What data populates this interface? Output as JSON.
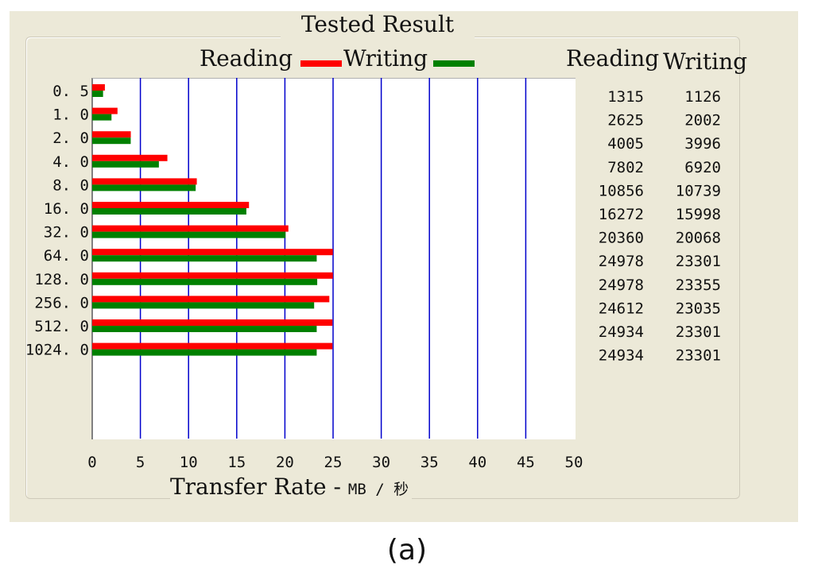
{
  "title": "Tested Result",
  "legend": {
    "reading_label": "Reading",
    "writing_label": "Writing"
  },
  "table_headers": {
    "reading": "Reading",
    "writing": "Writing"
  },
  "x_axis_title": "Transfer Rate - ",
  "x_axis_unit": "MB / 秒",
  "caption": "(a)",
  "colors": {
    "reading": "#ff0000",
    "writing": "#008000",
    "grid": "#0000cc",
    "panel": "#ece9d8"
  },
  "chart_data": {
    "type": "bar",
    "orientation": "horizontal",
    "title": "Tested Result",
    "categories": [
      "0.5",
      "1.0",
      "2.0",
      "4.0",
      "8.0",
      "16.0",
      "32.0",
      "64.0",
      "128.0",
      "256.0",
      "512.0",
      "1024.0"
    ],
    "category_labels": [
      "0. 5",
      "1. 0",
      "2. 0",
      "4. 0",
      "8. 0",
      "16. 0",
      "32. 0",
      "64. 0",
      "128. 0",
      "256. 0",
      "512. 0",
      "1024. 0"
    ],
    "series": [
      {
        "name": "Reading",
        "color": "#ff0000",
        "values": [
          1.315,
          2.625,
          4.005,
          7.802,
          10.856,
          16.272,
          20.36,
          24.978,
          24.978,
          24.612,
          24.934,
          24.934
        ],
        "labels": [
          "1315",
          "2625",
          "4005",
          "7802",
          "10856",
          "16272",
          "20360",
          "24978",
          "24978",
          "24612",
          "24934",
          "24934"
        ]
      },
      {
        "name": "Writing",
        "color": "#008000",
        "values": [
          1.126,
          2.002,
          3.996,
          6.92,
          10.739,
          15.998,
          20.068,
          23.301,
          23.355,
          23.035,
          23.301,
          23.301
        ],
        "labels": [
          "1126",
          "2002",
          "3996",
          "6920",
          "10739",
          "15998",
          "20068",
          "23301",
          "23355",
          "23035",
          "23301",
          "23301"
        ]
      }
    ],
    "xlim": [
      0,
      50
    ],
    "xticks": [
      0,
      5,
      10,
      15,
      20,
      25,
      30,
      35,
      40,
      45,
      50
    ],
    "grid": true,
    "legend_position": "top"
  }
}
